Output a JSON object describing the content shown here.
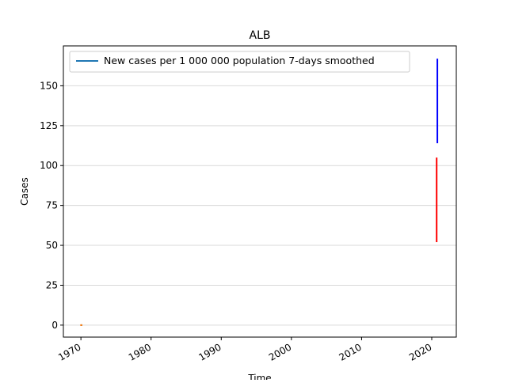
{
  "chart_data": {
    "type": "line",
    "title": "ALB",
    "xlabel": "Time",
    "ylabel": "Cases",
    "xlim": [
      1967.5,
      2023.5
    ],
    "ylim": [
      -7.5,
      175
    ],
    "x_ticks": [
      1970,
      1980,
      1990,
      2000,
      2010,
      2020
    ],
    "x_tick_labels": [
      "1970",
      "1980",
      "1990",
      "2000",
      "2010",
      "2020"
    ],
    "y_ticks": [
      0,
      25,
      50,
      75,
      100,
      125,
      150
    ],
    "y_tick_labels": [
      "0",
      "25",
      "50",
      "75",
      "100",
      "125",
      "150"
    ],
    "grid": "horizontal",
    "legend_position": "top-left",
    "legend": [
      {
        "label": "New cases per 1 000 000 population 7-days smoothed",
        "color": "#1f77b4"
      }
    ],
    "series": [
      {
        "color": "#1f77b4",
        "x": [
          1970.0,
          1970.2
        ],
        "y": [
          0,
          0
        ]
      },
      {
        "color": "#ff7f0e",
        "x": [
          1969.9,
          1970.2
        ],
        "y": [
          0,
          0
        ]
      },
      {
        "color": "#0000ff",
        "x": [
          2020.8,
          2020.8
        ],
        "y": [
          114,
          167
        ]
      },
      {
        "color": "#ff0000",
        "x": [
          2020.7,
          2020.7
        ],
        "y": [
          52,
          105
        ]
      }
    ]
  }
}
